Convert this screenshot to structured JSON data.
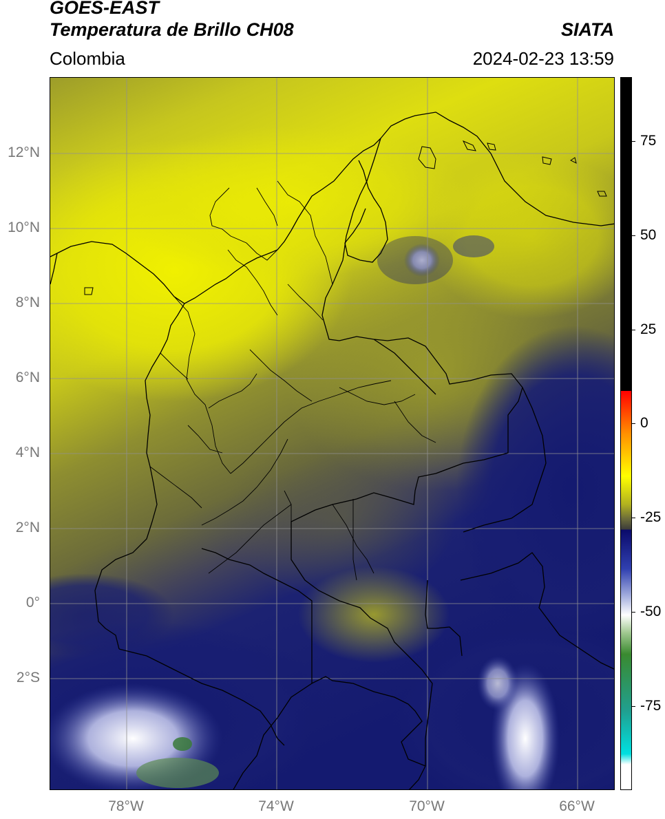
{
  "header": {
    "title_line1": "GOES-EAST",
    "title_line2": "Temperatura de Brillo CH08",
    "subtitle": "Colombia",
    "organization": "SIATA",
    "timestamp": "2024-02-23 13:59"
  },
  "map": {
    "lat_labels": [
      "12°N",
      "10°N",
      "8°N",
      "6°N",
      "4°N",
      "2°N",
      "0°",
      "2°S"
    ],
    "lon_labels": [
      "78°W",
      "74°W",
      "70°W",
      "66°W"
    ],
    "colors": {
      "yellow_bright": "#e8e800",
      "yellow_olive": "#b8b820",
      "olive_dark": "#75753a",
      "grey_olive": "#5a5a4a",
      "navy": "#141a70",
      "blue_mid": "#3a44a0",
      "white_cloud": "#f4f4ff",
      "green_cloud": "#5b8a52",
      "border": "#000000",
      "gridline": "#909090"
    }
  },
  "colorbar": {
    "ticks": [
      "75",
      "50",
      "25",
      "0",
      "-25",
      "-50",
      "-75"
    ],
    "colors": [
      "#000000",
      "#ff0000",
      "#ff9000",
      "#ffff00",
      "#b0b020",
      "#6b6b3a",
      "#3a3a3a",
      "#0a0a6a",
      "#3040b0",
      "#aab4e0",
      "#ffffff",
      "#a0c890",
      "#3a8a30",
      "#20a090",
      "#00e0e0",
      "#ffffff"
    ]
  }
}
